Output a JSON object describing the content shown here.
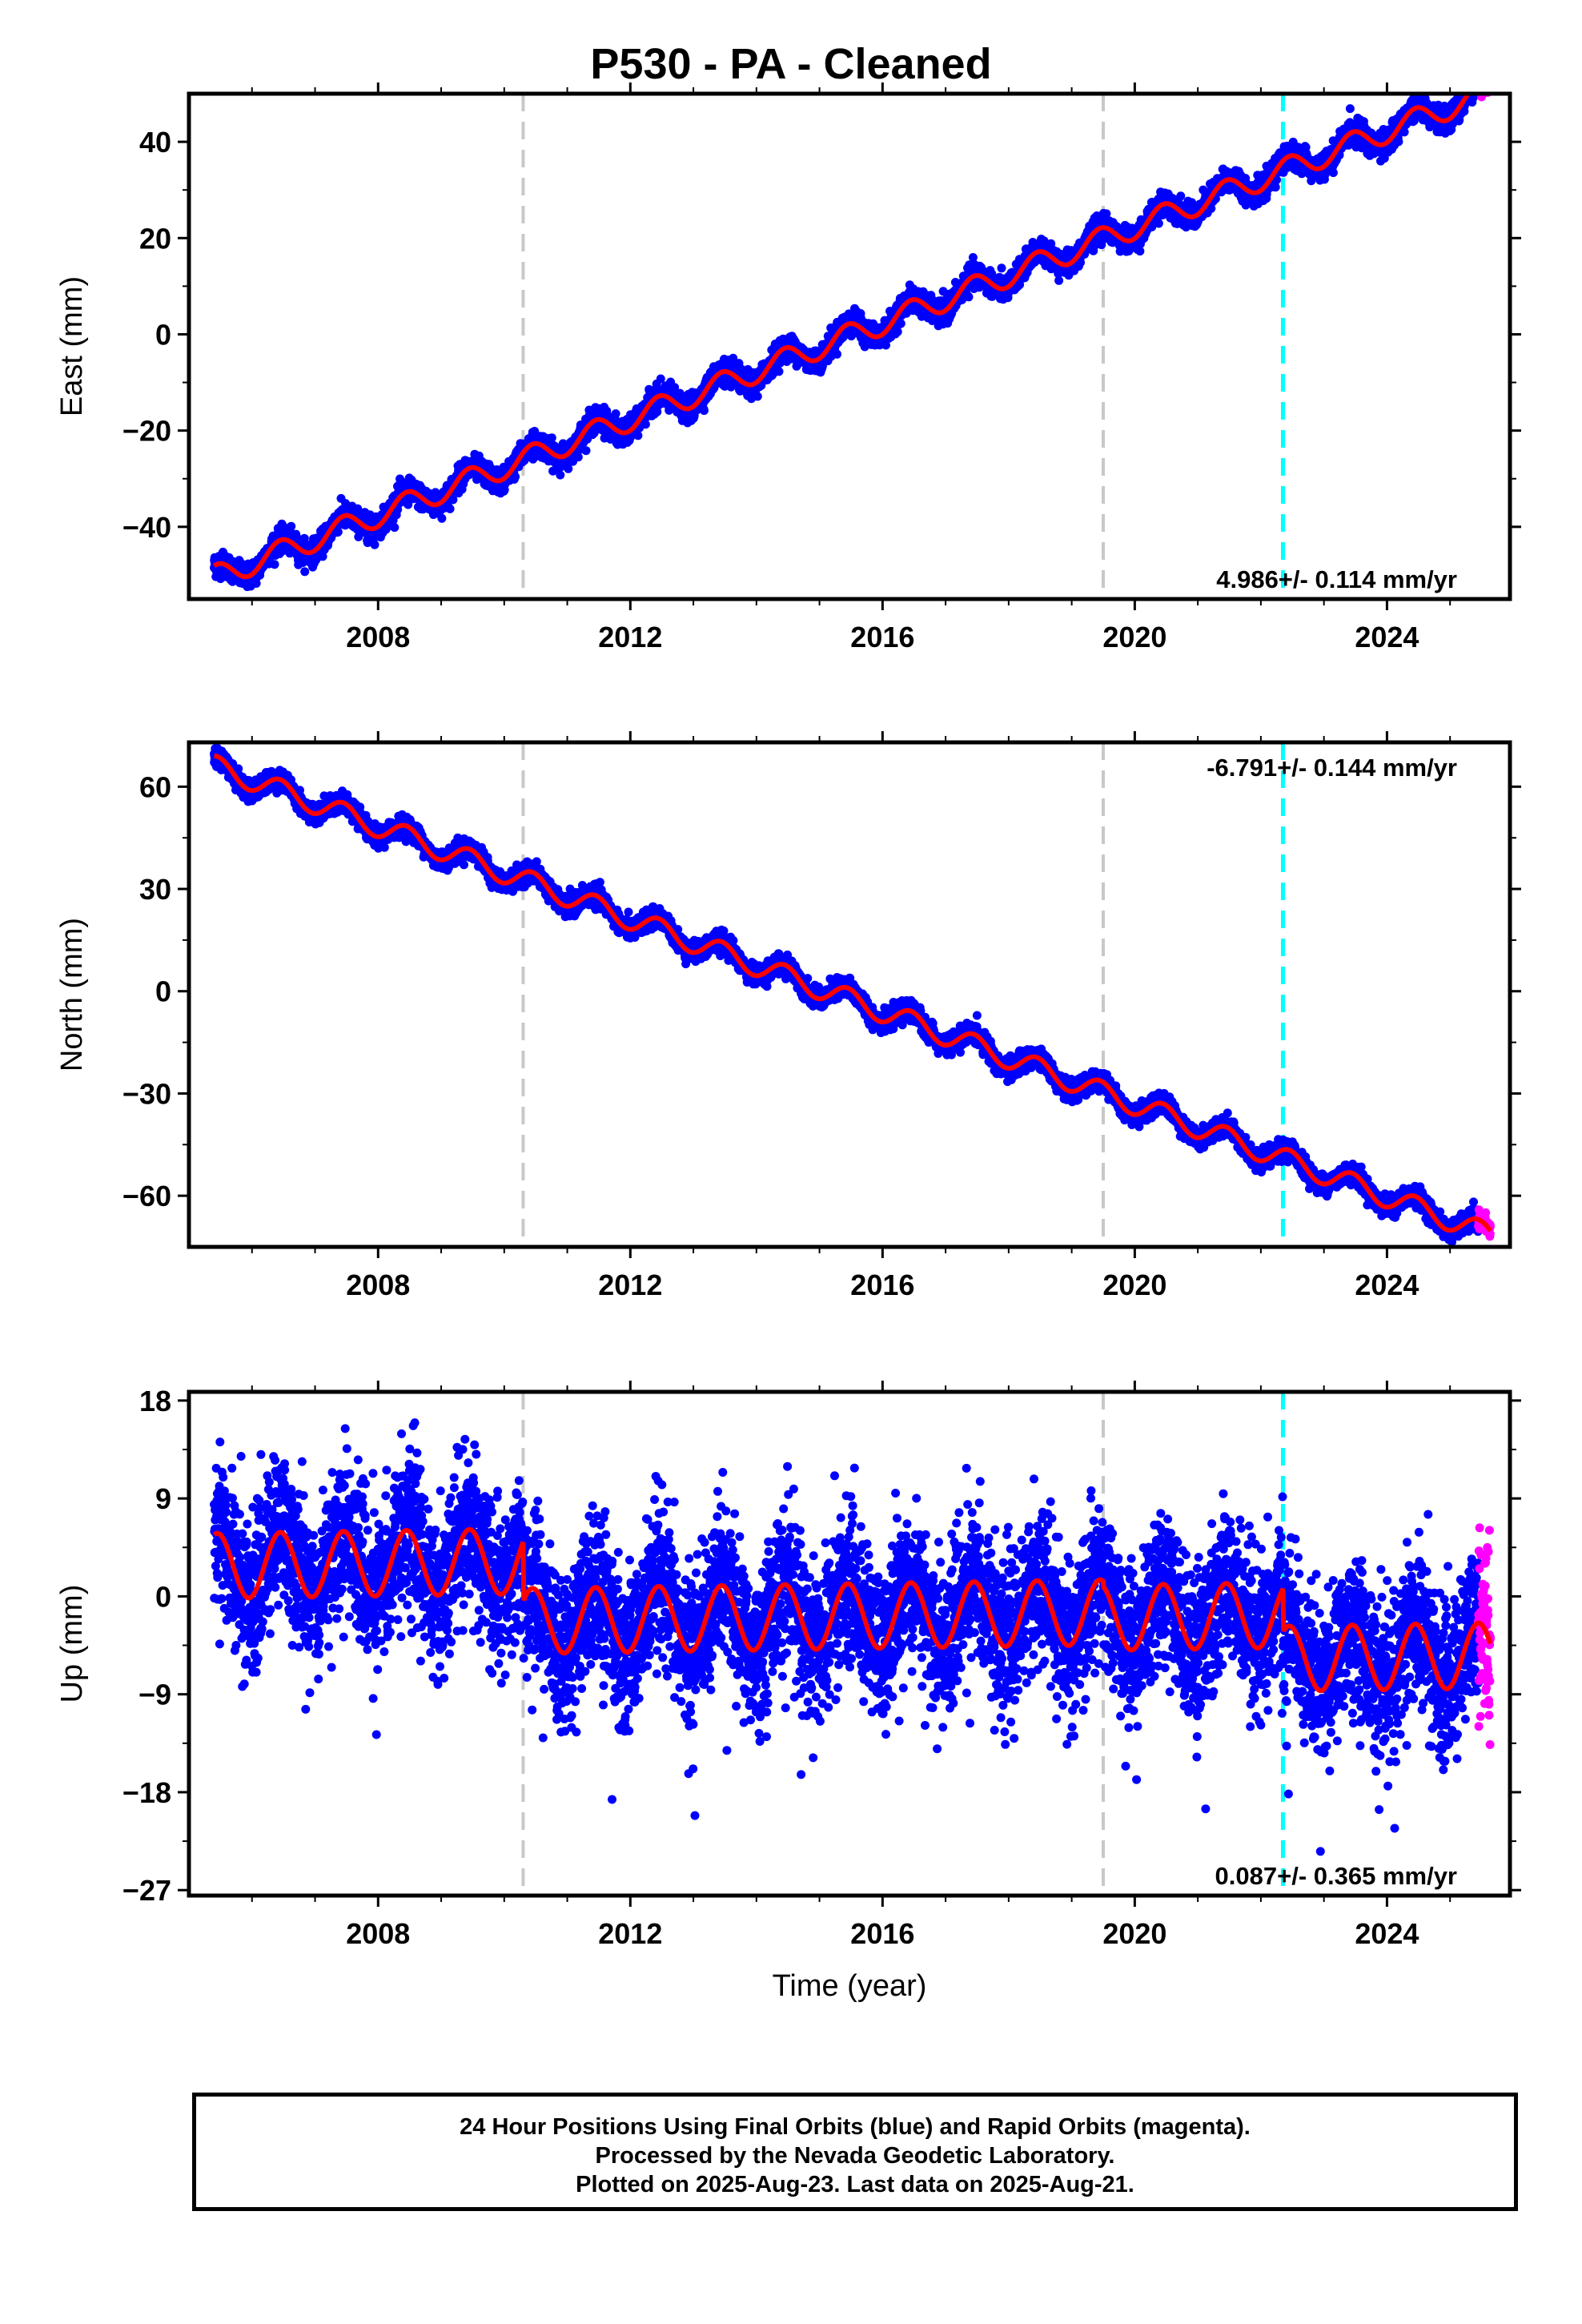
{
  "title": "P530  - PA - Cleaned",
  "footer": {
    "line1": "24 Hour Positions Using Final Orbits (blue) and Rapid Orbits (magenta).",
    "line2": "Processed by the Nevada Geodetic Laboratory.",
    "line3": "Plotted on 2025-Aug-23. Last data on 2025-Aug-21."
  },
  "chart_data": [
    {
      "type": "scatter",
      "panel": "east",
      "ylabel": "East (mm)",
      "xlabel": "",
      "xlim": [
        2005.0,
        2025.95
      ],
      "ylim": [
        -55,
        50
      ],
      "yticks": [
        -40,
        -20,
        0,
        20,
        40
      ],
      "ytick_labels": [
        "−40",
        "−20",
        "0",
        "20",
        "40"
      ],
      "xticks": [
        2008,
        2012,
        2016,
        2020,
        2024
      ],
      "xtick_labels": [
        "2008",
        "2012",
        "2016",
        "2020",
        "2024"
      ],
      "rate_text": "4.986+/- 0.114 mm/yr",
      "rate_position": "bottom-right",
      "trend": {
        "start_year": 2005.4,
        "start_value": -50.5,
        "rate": 4.986,
        "seasonal_amplitude": 2.5,
        "scatter": 1.2
      },
      "offsets": [],
      "series": [
        {
          "name": "Final Orbits",
          "color": "#0000ff",
          "x_range": [
            2005.4,
            2025.45
          ]
        },
        {
          "name": "Rapid Orbits",
          "color": "#ff00ff",
          "x_range": [
            2025.45,
            2025.64
          ]
        },
        {
          "name": "Model",
          "color": "#ff0000"
        }
      ],
      "vlines": [
        {
          "x": 2010.3,
          "color": "#c8c8c8"
        },
        {
          "x": 2019.5,
          "color": "#c8c8c8"
        },
        {
          "x": 2022.35,
          "color": "#00ffff"
        }
      ]
    },
    {
      "type": "scatter",
      "panel": "north",
      "ylabel": "North (mm)",
      "xlabel": "",
      "xlim": [
        2005.0,
        2025.95
      ],
      "ylim": [
        -75,
        73
      ],
      "yticks": [
        -60,
        -30,
        0,
        30,
        60
      ],
      "ytick_labels": [
        "−60",
        "−30",
        "0",
        "30",
        "60"
      ],
      "xticks": [
        2008,
        2012,
        2016,
        2020,
        2024
      ],
      "xtick_labels": [
        "2008",
        "2012",
        "2016",
        "2020",
        "2024"
      ],
      "rate_text": "-6.791+/- 0.144 mm/yr",
      "rate_position": "top-right",
      "trend": {
        "start_year": 2005.4,
        "start_value": 66.0,
        "rate": -6.791,
        "seasonal_amplitude": 3.2,
        "scatter": 1.4
      },
      "offsets": [],
      "series": [
        {
          "name": "Final Orbits",
          "color": "#0000ff",
          "x_range": [
            2005.4,
            2025.45
          ]
        },
        {
          "name": "Rapid Orbits",
          "color": "#ff00ff",
          "x_range": [
            2025.45,
            2025.64
          ]
        },
        {
          "name": "Model",
          "color": "#ff0000"
        }
      ],
      "vlines": [
        {
          "x": 2010.3,
          "color": "#c8c8c8"
        },
        {
          "x": 2019.5,
          "color": "#c8c8c8"
        },
        {
          "x": 2022.35,
          "color": "#00ffff"
        }
      ]
    },
    {
      "type": "scatter",
      "panel": "up",
      "ylabel": "Up (mm)",
      "xlabel": "Time (year)",
      "xlim": [
        2005.0,
        2025.95
      ],
      "ylim": [
        -27.5,
        18.8
      ],
      "yticks": [
        -27,
        -18,
        -9,
        0,
        9,
        18
      ],
      "ytick_labels": [
        "−27",
        "−18",
        "−9",
        "0",
        "9",
        "18"
      ],
      "xticks": [
        2008,
        2012,
        2016,
        2020,
        2024
      ],
      "xtick_labels": [
        "2008",
        "2012",
        "2016",
        "2020",
        "2024"
      ],
      "rate_text": "0.087+/- 0.365 mm/yr",
      "rate_position": "bottom-right",
      "trend": {
        "start_year": 2005.4,
        "start_value": 2.8,
        "rate": 0.087,
        "seasonal_amplitude": 3.0,
        "scatter": 3.4
      },
      "offsets": [
        {
          "x": 2010.3,
          "value": -5.5
        },
        {
          "x": 2019.5,
          "value": -0.5
        },
        {
          "x": 2022.35,
          "value": -4.0
        }
      ],
      "series": [
        {
          "name": "Final Orbits",
          "color": "#0000ff",
          "x_range": [
            2005.4,
            2025.45
          ]
        },
        {
          "name": "Rapid Orbits",
          "color": "#ff00ff",
          "x_range": [
            2025.45,
            2025.64
          ]
        },
        {
          "name": "Model",
          "color": "#ff0000"
        }
      ],
      "vlines": [
        {
          "x": 2010.3,
          "color": "#c8c8c8"
        },
        {
          "x": 2019.5,
          "color": "#c8c8c8"
        },
        {
          "x": 2022.35,
          "color": "#00ffff"
        }
      ]
    }
  ]
}
